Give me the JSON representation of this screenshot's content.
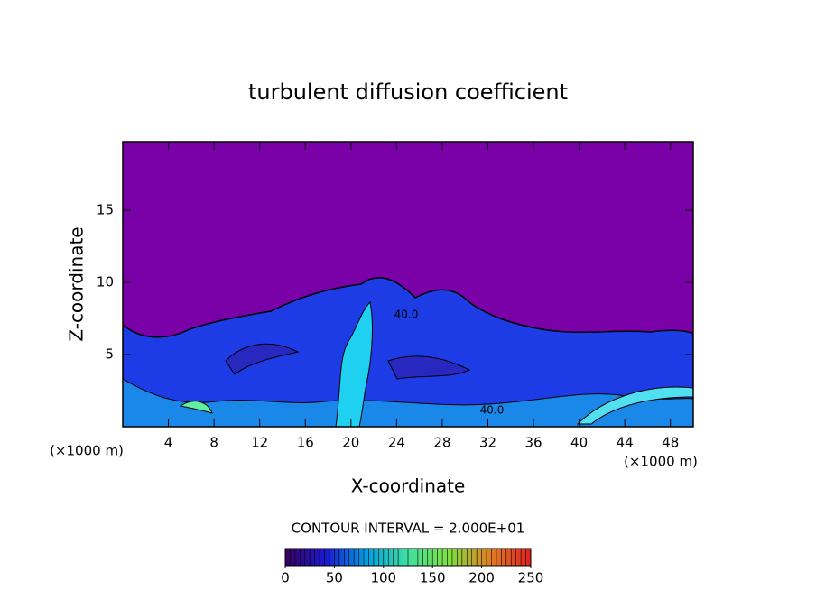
{
  "chart_data": {
    "type": "contour",
    "title": "turbulent diffusion coefficient",
    "x_label": "X-coordinate",
    "y_label": "Z-coordinate",
    "x_unit_left": "(×1000 m)",
    "x_unit_right": "(×1000 m)",
    "xlim": [
      0,
      50
    ],
    "xticks": [
      4,
      8,
      12,
      16,
      20,
      24,
      28,
      32,
      36,
      40,
      44,
      48
    ],
    "ylim": [
      0,
      19.75
    ],
    "yticks": [
      5,
      10,
      15
    ],
    "background_color": "#7a00a8",
    "annotations": [
      "40.0",
      "40.0"
    ],
    "contour_interval_label": "CONTOUR INTERVAL = 2.000E+01",
    "colorbar": {
      "lim": [
        0,
        250
      ],
      "ticks": [
        0,
        50,
        100,
        150,
        200,
        250
      ],
      "colors": [
        "#3a0060",
        "#1a1ad0",
        "#00a0e0",
        "#40e0a0",
        "#80e040",
        "#e08020",
        "#e02020"
      ]
    }
  }
}
